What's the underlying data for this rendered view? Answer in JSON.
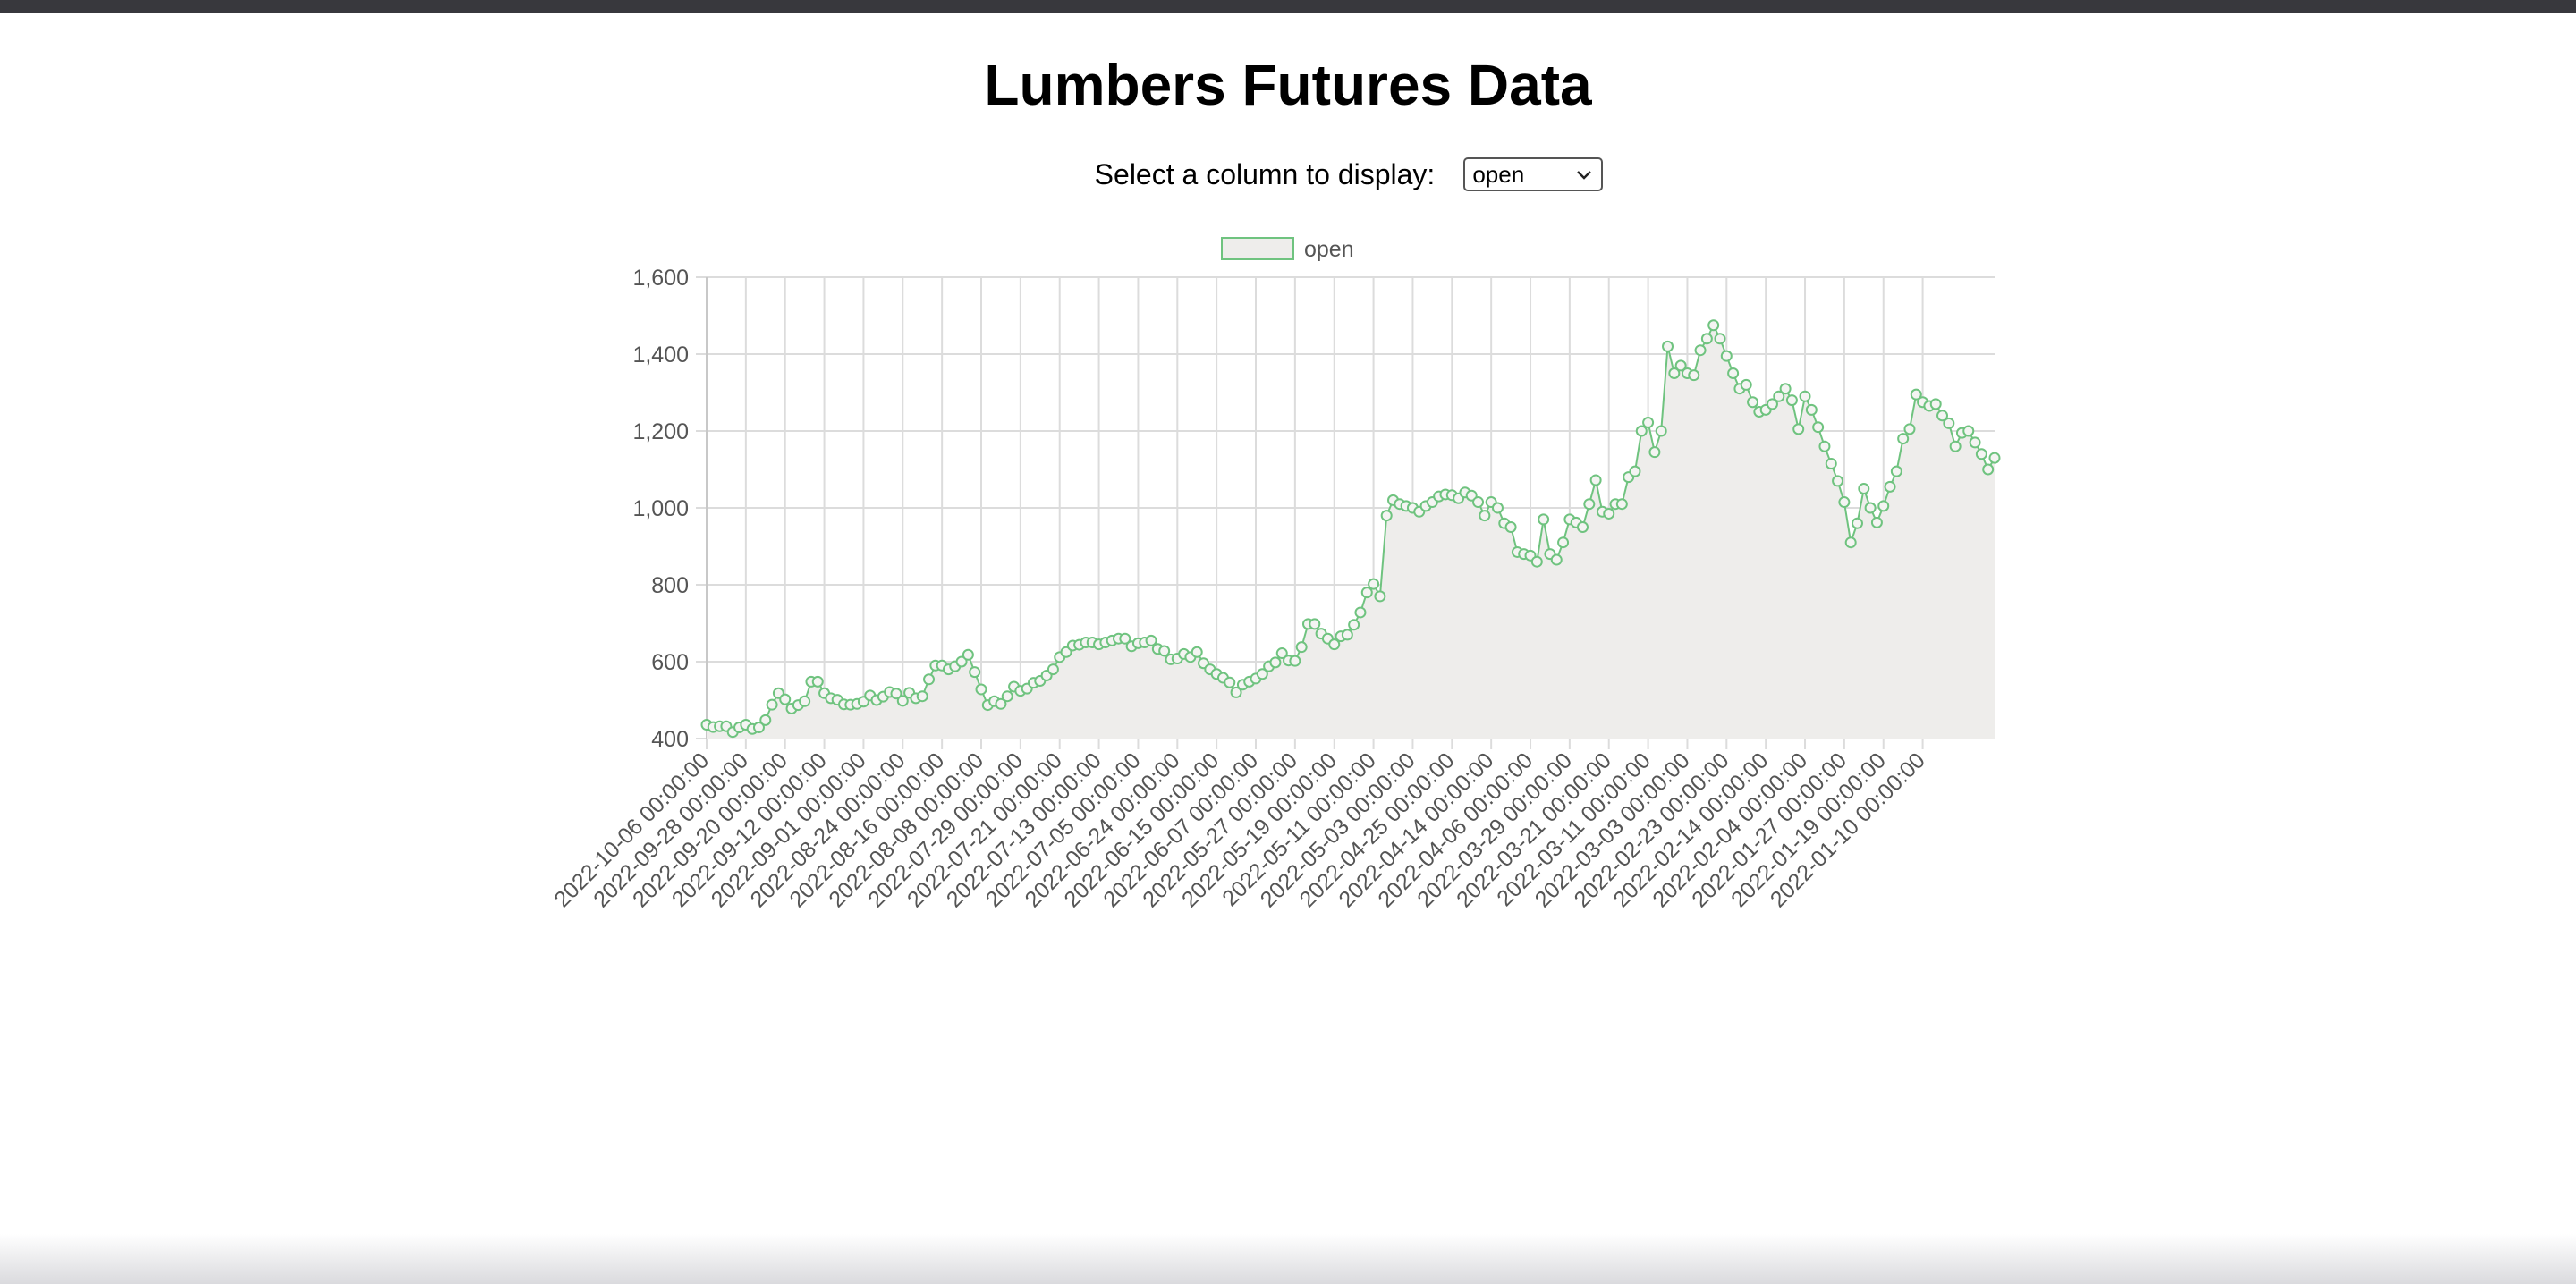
{
  "page": {
    "title": "Lumbers Futures Data",
    "select_label": "Select a column to display:",
    "selected_column": "open"
  },
  "colors": {
    "line": "#6fc37f",
    "fill": "#eeedeb",
    "grid": "#dcdcdc",
    "text": "#555555",
    "top_bar": "#38383d"
  },
  "icons": {
    "select_arrow": "chevron-down-icon"
  },
  "chart_data": {
    "type": "line",
    "title": "",
    "xlabel": "",
    "ylabel": "",
    "ylim": [
      400,
      1600
    ],
    "yticks": [
      "400",
      "600",
      "800",
      "1,000",
      "1,200",
      "1,400",
      "1,600"
    ],
    "grid": true,
    "legend_position": "top",
    "series": [
      {
        "name": "open",
        "values": [
          436,
          430,
          432,
          432,
          417,
          429,
          436,
          425,
          429,
          448,
          488,
          518,
          502,
          478,
          487,
          497,
          548,
          548,
          518,
          505,
          501,
          489,
          488,
          490,
          496,
          512,
          500,
          509,
          521,
          517,
          498,
          519,
          505,
          510,
          554,
          590,
          590,
          580,
          588,
          600,
          618,
          573,
          528,
          487,
          497,
          490,
          510,
          535,
          524,
          530,
          545,
          550,
          564,
          580,
          612,
          625,
          642,
          644,
          650,
          650,
          645,
          650,
          655,
          660,
          660,
          640,
          648,
          650,
          655,
          633,
          628,
          606,
          608,
          620,
          612,
          625,
          596,
          580,
          568,
          558,
          546,
          520,
          540,
          548,
          556,
          568,
          588,
          598,
          622,
          603,
          602,
          638,
          698,
          698,
          673,
          660,
          645,
          666,
          670,
          696,
          728,
          780,
          802,
          770,
          980,
          1020,
          1010,
          1005,
          1000,
          990,
          1005,
          1015,
          1030,
          1035,
          1033,
          1025,
          1040,
          1032,
          1015,
          980,
          1015,
          1000,
          960,
          950,
          885,
          880,
          876,
          860,
          970,
          880,
          865,
          910,
          970,
          962,
          950,
          1010,
          1072,
          990,
          985,
          1010,
          1010,
          1080,
          1095,
          1200,
          1222,
          1145,
          1200,
          1420,
          1350,
          1370,
          1350,
          1345,
          1410,
          1440,
          1475,
          1440,
          1395,
          1350,
          1310,
          1320,
          1275,
          1250,
          1255,
          1270,
          1290,
          1310,
          1280,
          1205,
          1290,
          1255,
          1210,
          1160,
          1115,
          1070,
          1015,
          910,
          960,
          1050,
          1000,
          962,
          1005,
          1055,
          1095,
          1180,
          1205,
          1295,
          1275,
          1265,
          1270,
          1240,
          1220,
          1160,
          1195,
          1200,
          1170,
          1140,
          1100,
          1130
        ]
      }
    ],
    "x_tick_labels": [
      "2022-10-06 00:00:00",
      "2022-09-28 00:00:00",
      "2022-09-20 00:00:00",
      "2022-09-12 00:00:00",
      "2022-09-01 00:00:00",
      "2022-08-24 00:00:00",
      "2022-08-16 00:00:00",
      "2022-08-08 00:00:00",
      "2022-07-29 00:00:00",
      "2022-07-21 00:00:00",
      "2022-07-13 00:00:00",
      "2022-07-05 00:00:00",
      "2022-06-24 00:00:00",
      "2022-06-15 00:00:00",
      "2022-06-07 00:00:00",
      "2022-05-27 00:00:00",
      "2022-05-19 00:00:00",
      "2022-05-11 00:00:00",
      "2022-05-03 00:00:00",
      "2022-04-25 00:00:00",
      "2022-04-14 00:00:00",
      "2022-04-06 00:00:00",
      "2022-03-29 00:00:00",
      "2022-03-21 00:00:00",
      "2022-03-11 00:00:00",
      "2022-03-03 00:00:00",
      "2022-02-23 00:00:00",
      "2022-02-14 00:00:00",
      "2022-02-04 00:00:00",
      "2022-01-27 00:00:00",
      "2022-01-19 00:00:00",
      "2022-01-10 00:00:00"
    ],
    "x_tick_every": 6
  }
}
